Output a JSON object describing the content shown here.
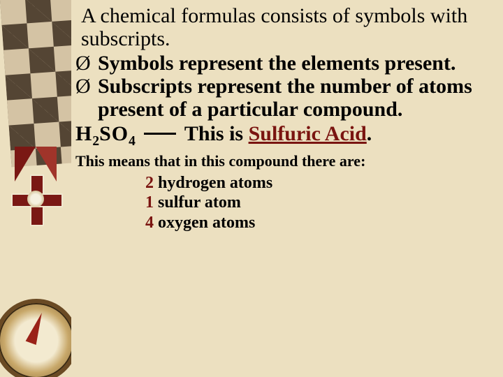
{
  "colors": {
    "background": "#ece0c0",
    "text": "#000000",
    "accent_red": "#7a1410",
    "band_dark": "#3a2a1c",
    "band_light": "#d0bfa0"
  },
  "typography": {
    "family": "Times New Roman",
    "intro_fontsize_pt": 22,
    "bullet_fontsize_pt": 22,
    "formula_fontsize_pt": 22,
    "means_fontsize_pt": 16,
    "atom_fontsize_pt": 18,
    "weight_main": "bold"
  },
  "intro": "A chemical formulas consists of symbols with subscripts.",
  "bullet_glyph": "Ø",
  "bullets": [
    "Symbols represent the elements present.",
    "Subscripts represent the number of atoms present of a particular compound."
  ],
  "formula": {
    "text_html": "H<sub>2</sub>SO<sub>4</sub>",
    "element1": "H",
    "sub1": "2",
    "element2": "SO",
    "sub2": "4",
    "label_prefix": "This is ",
    "name": "Sulfuric Acid",
    "label_suffix": "."
  },
  "means_line": "This means that in this compound there are:",
  "atoms": [
    {
      "count": "2",
      "label": " hydrogen atoms"
    },
    {
      "count": "1",
      "label": " sulfur atom"
    },
    {
      "count": "4",
      "label": " oxygen atoms"
    }
  ]
}
